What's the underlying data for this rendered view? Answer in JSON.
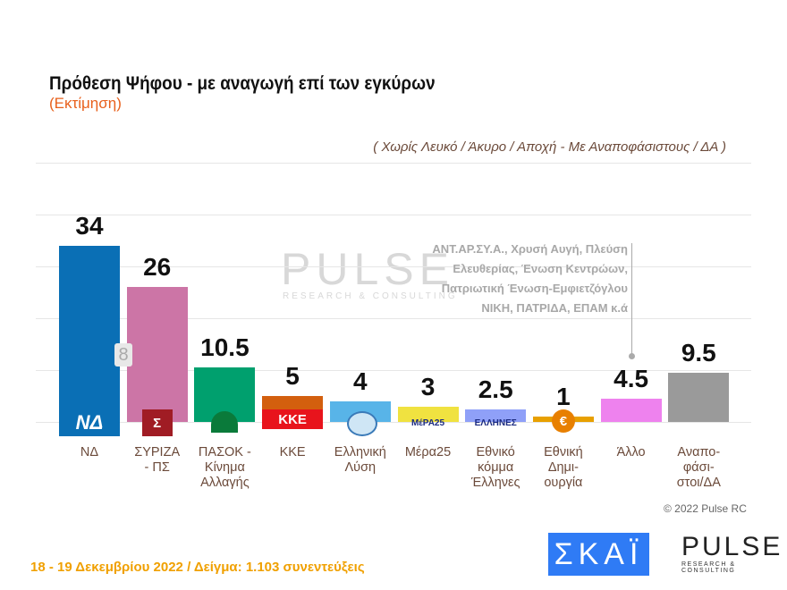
{
  "header": {
    "title": "Πρόθεση Ψήφου - με αναγωγή επί των εγκύρων",
    "subtitle": "(Εκτίμηση)",
    "note": "( Χωρίς Λευκό / Άκυρο / Αποχή  -  Με Αναποφάσιστους / ΔΑ )"
  },
  "watermark": {
    "brand": "PULSE",
    "tagline": "RESEARCH & CONSULTING"
  },
  "chart_data": {
    "type": "bar",
    "categories": [
      "ΝΔ",
      "ΣΥΡΙΖΑ\n- ΠΣ",
      "ΠΑΣΟΚ -\nΚίνημα\nΑλλαγής",
      "ΚΚΕ",
      "Ελληνική\nΛύση",
      "Μέρα25",
      "Εθνικό\nκόμμα\nΈλληνες",
      "Εθνική\nΔημι-\nουργία",
      "Άλλο",
      "Αναπο-\nφάσι-\nστοι/ΔΑ"
    ],
    "values": [
      34,
      26,
      10.5,
      5,
      4,
      3,
      2.5,
      1,
      4.5,
      9.5
    ],
    "value_labels": [
      "34",
      "26",
      "10.5",
      "5",
      "4",
      "3",
      "2.5",
      "1",
      "4.5",
      "9.5"
    ],
    "colors": [
      "#0a6fb5",
      "#cc75a6",
      "#00a06e",
      "#d35f0e",
      "#58b4e8",
      "#f0e240",
      "#8fa0f8",
      "#e8a000",
      "#ee82ee",
      "#9a9a9a"
    ],
    "logos": [
      "ΝΔ",
      "Σ",
      "",
      "ΚΚΕ",
      "",
      "ΜέΡΑ25",
      "ΕΛΛΗΝΕΣ",
      "€",
      "",
      ""
    ],
    "ylim": [
      0,
      40
    ],
    "grid": true,
    "gap_label": "8",
    "annotation": "ΑΝΤ.ΑΡ.ΣΥ.Α., Χρυσή Αυγή, Πλεύση\nΕλευθερίας, Ένωση Κεντρώων,\nΠατριωτική Ένωση-Εμφιετζόγλου\nΝΙΚΗ, ΠΑΤΡΙΔΑ, ΕΠΑΜ   κ.ά"
  },
  "footer": {
    "copyright": "© 2022 Pulse RC",
    "info": "18 - 19  Δεκεμβρίου  2022  /  Δείγμα:  1.103 συνεντεύξεις",
    "skai_logo": "ΣΚΑΪ",
    "pulse_logo": "PULSE",
    "pulse_tagline": "RESEARCH & CONSULTING"
  }
}
